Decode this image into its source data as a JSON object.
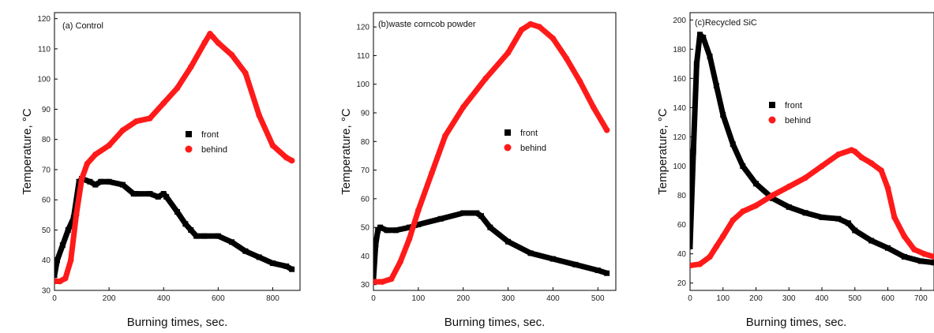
{
  "chart_data": [
    {
      "type": "scatter",
      "title": "(a) Control",
      "xlabel": "Burning times, sec.",
      "ylabel": "Temperature, °C",
      "xlim": [
        0,
        900
      ],
      "ylim": [
        30,
        122
      ],
      "xticks": [
        0,
        200,
        400,
        600,
        800
      ],
      "yticks": [
        30,
        40,
        50,
        60,
        70,
        80,
        90,
        100,
        110,
        120
      ],
      "grid": false,
      "legend_position": "center-right",
      "series": [
        {
          "name": "front",
          "color": "#000000",
          "marker": "square",
          "x": [
            0,
            10,
            30,
            50,
            70,
            90,
            100,
            130,
            150,
            170,
            200,
            250,
            290,
            300,
            350,
            380,
            400,
            410,
            450,
            480,
            500,
            520,
            550,
            600,
            650,
            700,
            750,
            800,
            850,
            870
          ],
          "y": [
            35,
            40,
            45,
            50,
            54,
            66,
            67,
            66,
            65,
            66,
            66,
            65,
            62,
            62,
            62,
            61,
            62,
            61,
            56,
            52,
            50,
            48,
            48,
            48,
            46,
            43,
            41,
            39,
            38,
            37
          ]
        },
        {
          "name": "behind",
          "color": "#ff1a1a",
          "marker": "circle",
          "x": [
            0,
            20,
            40,
            60,
            80,
            100,
            120,
            150,
            200,
            250,
            300,
            350,
            400,
            450,
            500,
            550,
            570,
            580,
            600,
            650,
            700,
            750,
            800,
            850,
            870
          ],
          "y": [
            33,
            33,
            34,
            40,
            55,
            67,
            72,
            75,
            78,
            83,
            86,
            87,
            92,
            97,
            104,
            112,
            115,
            114,
            112,
            108,
            102,
            88,
            78,
            74,
            73
          ]
        }
      ]
    },
    {
      "type": "scatter",
      "title": "(b)waste corncob powder",
      "xlabel": "Burning times, sec.",
      "ylabel": "Temperature, °C",
      "xlim": [
        0,
        540
      ],
      "ylim": [
        28,
        125
      ],
      "xticks": [
        0,
        100,
        200,
        300,
        400,
        500
      ],
      "yticks": [
        30,
        40,
        50,
        60,
        70,
        80,
        90,
        100,
        110,
        120
      ],
      "grid": false,
      "legend_position": "center-right",
      "series": [
        {
          "name": "front",
          "color": "#000000",
          "marker": "square",
          "x": [
            0,
            5,
            10,
            15,
            30,
            50,
            80,
            100,
            150,
            200,
            230,
            240,
            260,
            300,
            350,
            400,
            450,
            500,
            520
          ],
          "y": [
            32,
            44,
            49,
            50,
            49,
            49,
            50,
            51,
            53,
            55,
            55,
            54,
            50,
            45,
            41,
            39,
            37,
            35,
            34
          ]
        },
        {
          "name": "behind",
          "color": "#ff1a1a",
          "marker": "circle",
          "x": [
            0,
            20,
            40,
            60,
            80,
            100,
            130,
            160,
            200,
            250,
            300,
            330,
            350,
            370,
            400,
            430,
            460,
            490,
            520
          ],
          "y": [
            31,
            31,
            32,
            38,
            46,
            56,
            69,
            82,
            92,
            102,
            111,
            119,
            121,
            120,
            116,
            109,
            101,
            92,
            84
          ]
        }
      ]
    },
    {
      "type": "scatter",
      "title": "(c)Recycled SiC",
      "xlabel": "Burning times, sec.",
      "ylabel": "Temperature, °C",
      "xlim": [
        0,
        740
      ],
      "ylim": [
        15,
        205
      ],
      "xticks": [
        0,
        100,
        200,
        300,
        400,
        500,
        600,
        700
      ],
      "yticks": [
        20,
        40,
        60,
        80,
        100,
        120,
        140,
        160,
        180,
        200
      ],
      "grid": false,
      "legend_position": "top-center",
      "series": [
        {
          "name": "front",
          "color": "#000000",
          "marker": "square",
          "x": [
            0,
            10,
            20,
            30,
            40,
            60,
            80,
            100,
            130,
            160,
            200,
            250,
            300,
            350,
            400,
            450,
            480,
            500,
            550,
            600,
            650,
            700,
            740
          ],
          "y": [
            45,
            110,
            170,
            190,
            188,
            175,
            155,
            135,
            115,
            100,
            88,
            78,
            72,
            68,
            65,
            64,
            61,
            56,
            49,
            44,
            38,
            35,
            34
          ]
        },
        {
          "name": "behind",
          "color": "#ff1a1a",
          "marker": "circle",
          "x": [
            0,
            30,
            60,
            80,
            100,
            130,
            160,
            200,
            250,
            300,
            350,
            400,
            450,
            490,
            500,
            520,
            550,
            580,
            600,
            620,
            650,
            680,
            710,
            740
          ],
          "y": [
            32,
            33,
            38,
            45,
            52,
            63,
            69,
            73,
            80,
            86,
            92,
            100,
            108,
            111,
            110,
            106,
            102,
            97,
            85,
            65,
            52,
            43,
            40,
            38
          ]
        }
      ]
    }
  ]
}
